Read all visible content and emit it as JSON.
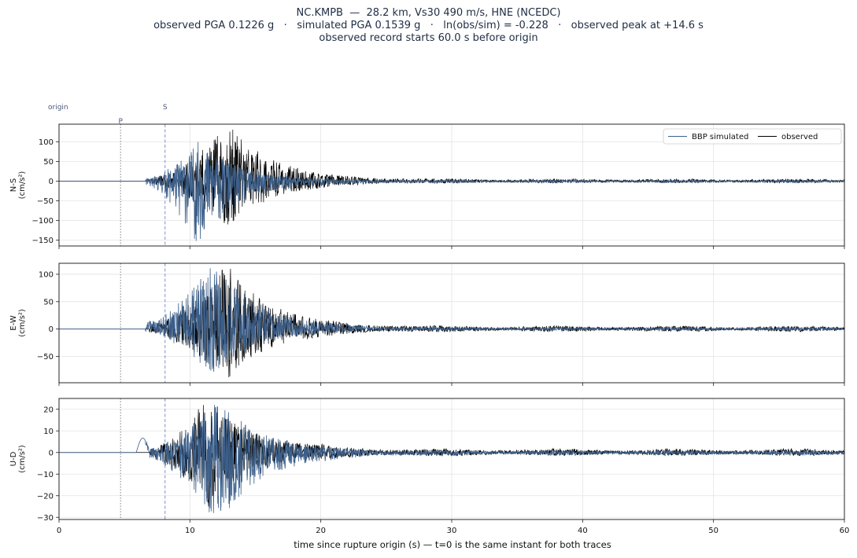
{
  "titles": {
    "line1": "NC.KMPB  —  28.2 km, Vs30 490 m/s, HNE (NCEDC)",
    "line2": "observed PGA 0.1226 g   ·   simulated PGA 0.1539 g   ·   ln(obs/sim) = -0.228   ·   observed peak at +14.6 s",
    "line3": "observed record starts 60.0 s before origin"
  },
  "colors": {
    "simulated": "#3c5f8a",
    "observed": "#000000",
    "p_marker": "#7a7f88",
    "s_marker": "#7d93c4",
    "grid": "#e3e3e3"
  },
  "chart_data": {
    "type": "line",
    "xlabel": "time since rupture origin (s)   —   t=0 is the same instant for both traces",
    "xlim": [
      0,
      60
    ],
    "xticks": [
      0,
      10,
      20,
      30,
      40,
      50,
      60
    ],
    "legend": {
      "placement": "top-right",
      "entries": [
        "BBP simulated",
        "observed"
      ]
    },
    "markers": [
      {
        "label": "origin",
        "t": 0
      },
      {
        "label": "P",
        "t": 4.7
      },
      {
        "label": "S",
        "t": 8.1
      }
    ],
    "panels": [
      {
        "ylabel": "N-S",
        "unit": "(cm/s²)",
        "ylim": [
          -165,
          145
        ],
        "yticks": [
          -150,
          -100,
          -50,
          0,
          50,
          100
        ],
        "peaks": {
          "simulated": {
            "min": -152,
            "max": 100
          },
          "observed": {
            "min": -110,
            "max": 131
          }
        }
      },
      {
        "ylabel": "E-W",
        "unit": "(cm/s²)",
        "ylim": [
          -98,
          120
        ],
        "yticks": [
          -50,
          0,
          50,
          100
        ],
        "peaks": {
          "simulated": {
            "min": -78,
            "max": 111
          },
          "observed": {
            "min": -88,
            "max": 110
          }
        }
      },
      {
        "ylabel": "U-D",
        "unit": "(cm/s²)",
        "ylim": [
          -31,
          25
        ],
        "yticks": [
          -30,
          -20,
          -10,
          0,
          10,
          20
        ],
        "peaks": {
          "simulated": {
            "min": -28,
            "max": 22
          },
          "observed": {
            "min": -25,
            "max": 22
          }
        }
      }
    ]
  }
}
